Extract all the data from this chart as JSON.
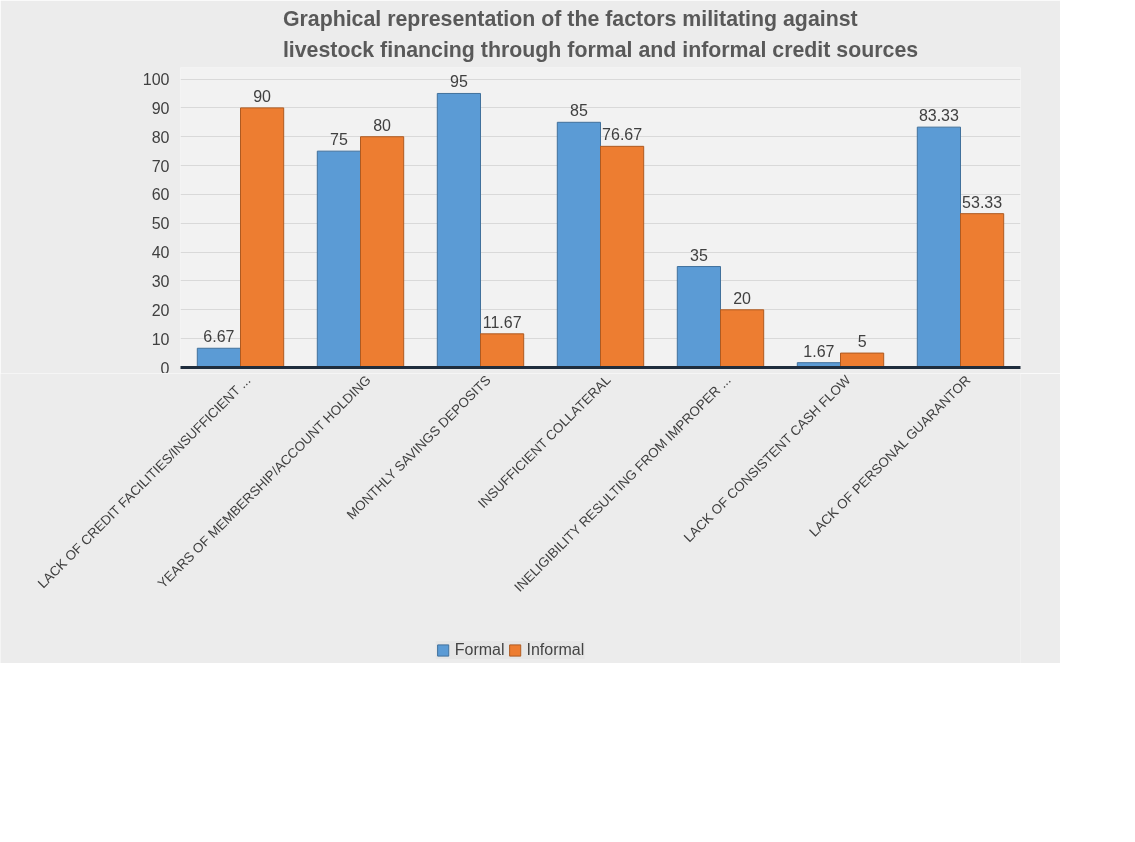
{
  "chart_data": {
    "type": "bar",
    "title": "Graphical representation of the factors militating against livestock financing through formal and informal credit sources",
    "categories": [
      "LACK OF CREDIT FACILITIES/INSUFFICIENT ...",
      "YEARS OF MEMBERSHIP/ACCOUNT HOLDING",
      "MONTHLY SAVINGS DEPOSITS",
      "INSUFFICIENT COLLATERAL",
      "INELIGIBILITY RESULTING FROM IMPROPER ...",
      "LACK OF CONSISTENT CASH FLOW",
      "LACK OF PERSONAL GUARANTOR"
    ],
    "series": [
      {
        "name": "Formal",
        "color": "#5b9bd5",
        "values": [
          6.67,
          75,
          95,
          85,
          35,
          1.67,
          83.33
        ]
      },
      {
        "name": "Informal",
        "color": "#ed7d31",
        "values": [
          90,
          80,
          11.67,
          76.67,
          20,
          5,
          53.33
        ]
      }
    ],
    "ylim": [
      0,
      100
    ],
    "yticks": [
      0,
      10,
      20,
      30,
      40,
      50,
      60,
      70,
      80,
      90,
      100
    ],
    "grid": "y",
    "legend": "bottom",
    "data_labels": true
  }
}
